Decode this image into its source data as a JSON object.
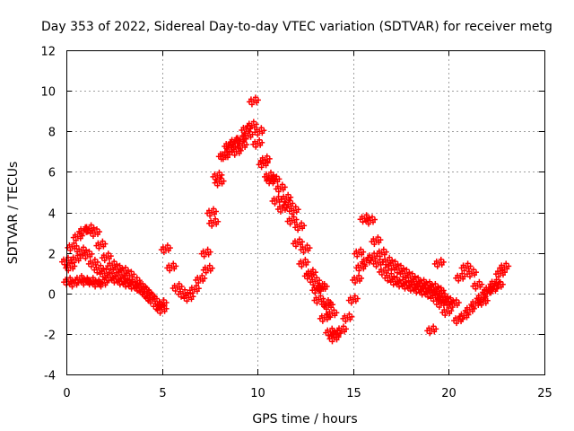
{
  "chart_data": {
    "type": "scatter",
    "title": "Day 353 of 2022, Sidereal Day-to-day VTEC variation (SDTVAR) for receiver metg",
    "xlabel": "GPS time / hours",
    "ylabel": "SDTVAR / TECUs",
    "xlim": [
      0,
      25
    ],
    "ylim": [
      -4,
      12
    ],
    "xticks": [
      "0",
      "5",
      "10",
      "15",
      "20",
      "25"
    ],
    "yticks": [
      "-4",
      "-2",
      "0",
      "2",
      "4",
      "6",
      "8",
      "10",
      "12"
    ],
    "grid": true,
    "marker": "plus",
    "series": [
      {
        "name": "SDTVAR",
        "color": "#ff0000",
        "x": [
          0.0,
          0.3,
          0.6,
          0.9,
          1.2,
          1.5,
          1.8,
          2.1,
          2.4,
          2.7,
          3.0,
          3.3,
          3.6,
          3.9,
          4.2,
          4.5,
          4.8,
          5.0,
          0.2,
          0.5,
          0.8,
          1.1,
          1.4,
          1.7,
          2.0,
          2.3,
          2.6,
          2.9,
          3.2,
          3.5,
          3.8,
          4.1,
          4.4,
          0.1,
          0.4,
          0.7,
          1.0,
          1.3,
          1.6,
          1.9,
          5.0,
          5.2,
          5.5,
          5.8,
          6.1,
          6.4,
          6.7,
          7.0,
          7.3,
          7.6,
          7.9,
          8.2,
          8.5,
          8.8,
          9.1,
          9.4,
          9.7,
          10.0,
          10.3,
          10.6,
          10.9,
          11.2,
          11.5,
          11.8,
          12.1,
          12.4,
          12.7,
          13.0,
          13.3,
          13.6,
          13.9,
          7.4,
          7.7,
          8.0,
          8.3,
          8.6,
          8.9,
          9.2,
          9.5,
          9.8,
          10.1,
          10.4,
          10.7,
          11.0,
          11.3,
          11.6,
          11.9,
          12.2,
          12.5,
          12.8,
          13.1,
          13.4,
          13.7,
          14.0,
          13.2,
          13.5,
          13.8,
          14.1,
          14.4,
          14.7,
          15.0,
          15.2,
          15.3,
          15.6,
          15.9,
          16.2,
          16.5,
          16.8,
          17.1,
          17.4,
          17.7,
          18.0,
          18.3,
          18.6,
          18.9,
          19.2,
          19.5,
          15.4,
          15.7,
          16.0,
          16.3,
          16.6,
          16.9,
          17.2,
          17.5,
          17.8,
          18.1,
          18.4,
          18.7,
          19.0,
          19.3,
          19.6,
          19.9,
          19.4,
          19.7,
          20.0,
          20.3,
          20.6,
          20.9,
          21.2,
          21.5,
          21.8,
          22.1,
          22.4,
          22.7,
          22.9,
          20.5,
          20.8,
          21.1,
          21.4,
          21.7,
          22.0,
          22.3,
          22.6,
          19.1,
          19.5,
          19.7
        ],
        "y": [
          1.6,
          2.3,
          2.8,
          3.1,
          3.2,
          3.0,
          2.4,
          1.8,
          1.4,
          1.2,
          1.1,
          0.9,
          0.6,
          0.3,
          0.0,
          -0.3,
          -0.6,
          -0.8,
          1.3,
          1.7,
          2.1,
          1.9,
          1.5,
          1.2,
          1.0,
          0.8,
          0.7,
          0.6,
          0.5,
          0.4,
          0.3,
          0.1,
          -0.2,
          0.6,
          0.5,
          0.7,
          0.6,
          0.6,
          0.5,
          0.5,
          -0.5,
          2.2,
          1.3,
          0.3,
          0.0,
          -0.2,
          0.2,
          0.7,
          2.0,
          4.0,
          5.8,
          6.8,
          7.3,
          7.5,
          7.6,
          8.1,
          8.3,
          7.4,
          6.4,
          5.8,
          5.6,
          5.2,
          4.7,
          3.6,
          2.5,
          1.5,
          0.9,
          0.6,
          0.3,
          -0.5,
          -1.0,
          1.2,
          3.5,
          5.5,
          6.8,
          7.2,
          7.0,
          7.3,
          7.8,
          9.5,
          8.0,
          6.6,
          5.6,
          4.6,
          4.2,
          4.4,
          4.1,
          3.3,
          2.2,
          1.0,
          0.2,
          0.3,
          -0.6,
          -2.2,
          -0.3,
          -1.2,
          -1.9,
          -2.0,
          -1.8,
          -1.2,
          -0.3,
          0.7,
          2.0,
          3.7,
          3.6,
          2.6,
          2.0,
          1.6,
          1.4,
          1.2,
          1.0,
          0.8,
          0.6,
          0.5,
          0.4,
          0.3,
          0.1,
          1.3,
          1.6,
          1.8,
          1.5,
          1.1,
          0.8,
          0.6,
          0.5,
          0.4,
          0.3,
          0.2,
          0.1,
          0.0,
          -0.2,
          -0.5,
          -0.9,
          0.1,
          -0.3,
          -0.4,
          -0.5,
          0.8,
          1.3,
          1.0,
          0.4,
          -0.4,
          0.2,
          0.5,
          1.0,
          1.3,
          -1.3,
          -1.1,
          -0.8,
          -0.5,
          -0.2,
          0.1,
          0.2,
          0.4,
          -1.8,
          1.5,
          -0.2
        ]
      }
    ]
  }
}
